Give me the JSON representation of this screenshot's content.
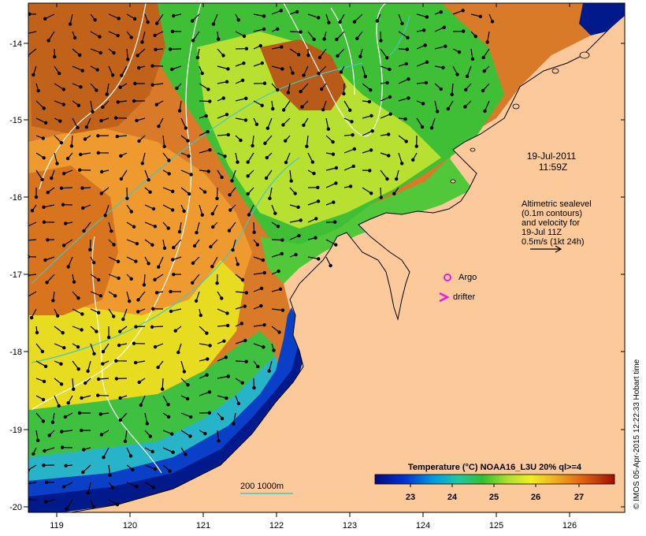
{
  "colors": {
    "land": "#FBC99A",
    "coast": "#000000",
    "warm": "#C8651A",
    "orange": "#F0A030",
    "yellow": "#E8E020",
    "lime": "#A8E030",
    "green": "#3CC030",
    "cyan": "#20B8B8",
    "blue": "#1060D0",
    "navy": "#001890",
    "contour": "#FFFFFF",
    "isobath": "#40C8C8",
    "marker": "#E020E0"
  },
  "axes": {
    "lon_labels": [
      "119",
      "120",
      "121",
      "122",
      "123",
      "124",
      "125",
      "126"
    ],
    "lat_labels": [
      "-14",
      "-15",
      "-16",
      "-17",
      "-18",
      "-19",
      "-20"
    ]
  },
  "annotations": {
    "date": "19-Jul-2011",
    "time": "11:59Z",
    "sealevel_lines": [
      "Altimetric sealevel",
      "(0.1m contours)",
      "and velocity for",
      "19-Jul 11Z",
      "0.5m/s (1kt 24h)"
    ],
    "argo_label": "Argo",
    "drifter_label": "drifter",
    "isobath_label": "200  1000m"
  },
  "colorbar": {
    "title": "Temperature (°C) NOAA16_L3U 20% ql>=4",
    "ticks": [
      "23",
      "24",
      "25",
      "26",
      "27"
    ]
  },
  "credit": "© IMOS 05-Apr-2015 12:22:33 Hobart time"
}
